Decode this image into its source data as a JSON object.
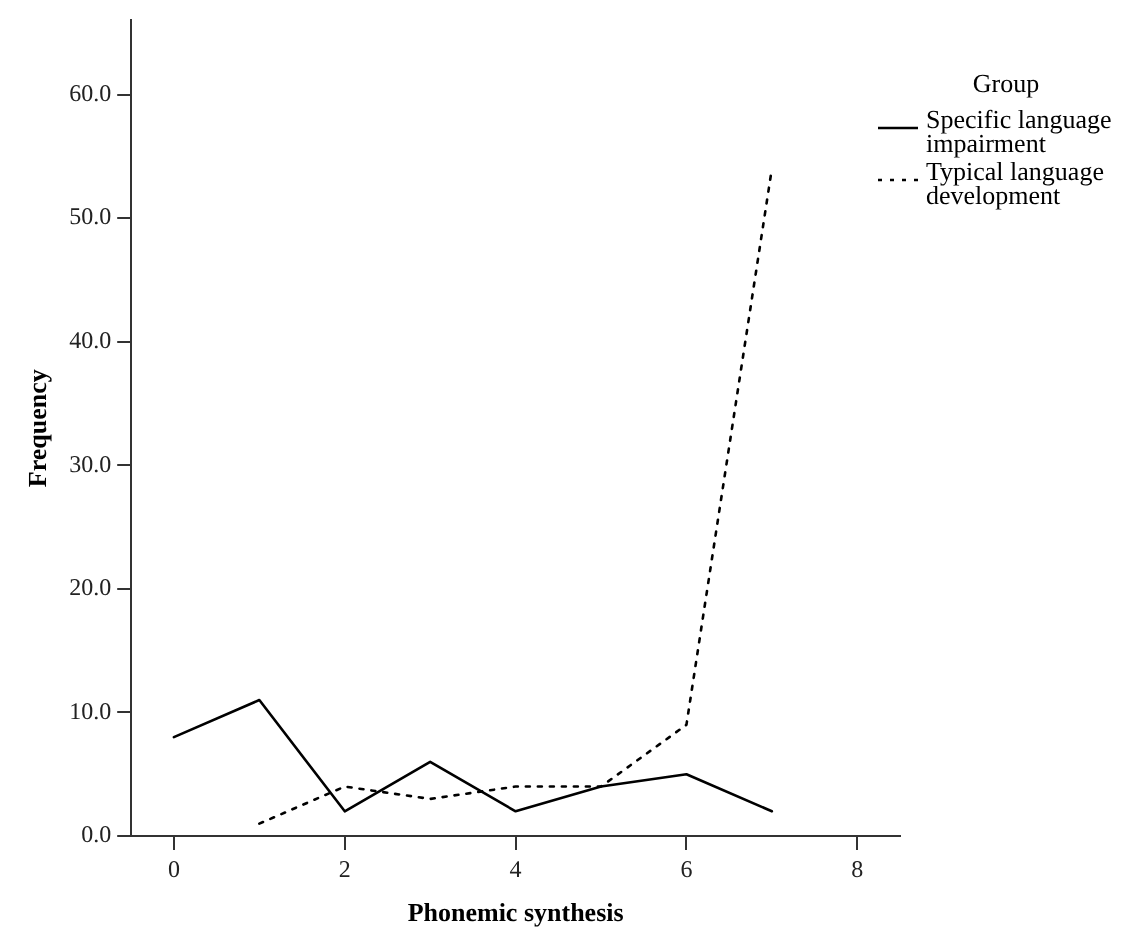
{
  "chart_data": {
    "type": "line",
    "xlabel": "Phonemic synthesis",
    "ylabel": "Frequency",
    "legend_title": "Group",
    "xlim": [
      -0.5,
      8.5
    ],
    "xticks": [
      0,
      2,
      4,
      6,
      8
    ],
    "ylim": [
      0,
      66
    ],
    "yticks": [
      {
        "value": 0,
        "label": "0.0"
      },
      {
        "value": 10,
        "label": "10.0"
      },
      {
        "value": 20,
        "label": "20.0"
      },
      {
        "value": 30,
        "label": "30.0"
      },
      {
        "value": 40,
        "label": "40.0"
      },
      {
        "value": 50,
        "label": "50.0"
      },
      {
        "value": 60,
        "label": "60.0"
      }
    ],
    "grid": false,
    "legend": "right",
    "marker": "none",
    "series": [
      {
        "name": "Specific language impairment",
        "color": "#000000",
        "line_style": "solid",
        "x": [
          0,
          1,
          2,
          3,
          4,
          5,
          6,
          7
        ],
        "values": [
          8,
          11,
          2,
          6,
          2,
          4,
          5,
          2
        ]
      },
      {
        "name": "Typical language development",
        "color": "#000000",
        "line_style": "dotted",
        "x": [
          1,
          2,
          3,
          4,
          5,
          6,
          7
        ],
        "values": [
          1,
          4,
          3,
          4,
          4,
          9,
          54
        ]
      }
    ]
  }
}
